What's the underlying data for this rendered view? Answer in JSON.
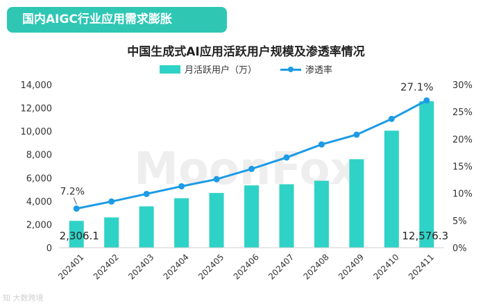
{
  "banner": {
    "title": "国内AIGC行业应用需求膨胀"
  },
  "watermark": {
    "brand": "MoonFox",
    "bottom_left": "知 大数跨境"
  },
  "chart_data": {
    "type": "bar",
    "title": "中国生成式AI应用活跃用户规模及渗透率情况",
    "categories": [
      "202401",
      "202402",
      "202403",
      "202404",
      "202405",
      "202406",
      "202407",
      "202408",
      "202409",
      "202410",
      "202411"
    ],
    "series": [
      {
        "name": "月活跃用户（万）",
        "type": "bar",
        "axis": "left",
        "color": "#2fd2c6",
        "values": [
          2306.1,
          2600,
          3550,
          4250,
          4700,
          5350,
          5450,
          5750,
          7600,
          10050,
          12576.3
        ]
      },
      {
        "name": "渗透率",
        "type": "line",
        "axis": "right",
        "color": "#1c9be6",
        "values": [
          7.2,
          8.5,
          9.9,
          11.3,
          12.6,
          14.5,
          16.6,
          19.0,
          20.8,
          23.7,
          27.1
        ]
      }
    ],
    "y_left": {
      "min": 0,
      "max": 14000,
      "ticks": [
        "0",
        "2,000",
        "4,000",
        "6,000",
        "8,000",
        "10,000",
        "12,000",
        "14,000"
      ]
    },
    "y_right": {
      "min": 0,
      "max": 30,
      "ticks": [
        "0%",
        "5%",
        "10%",
        "15%",
        "20%",
        "25%",
        "30%"
      ]
    },
    "data_labels": {
      "bar_first": "2,306.1",
      "bar_last": "12,576.3",
      "line_first": "7.2%",
      "line_last": "27.1%"
    },
    "grid": false,
    "legend_position": "top"
  }
}
